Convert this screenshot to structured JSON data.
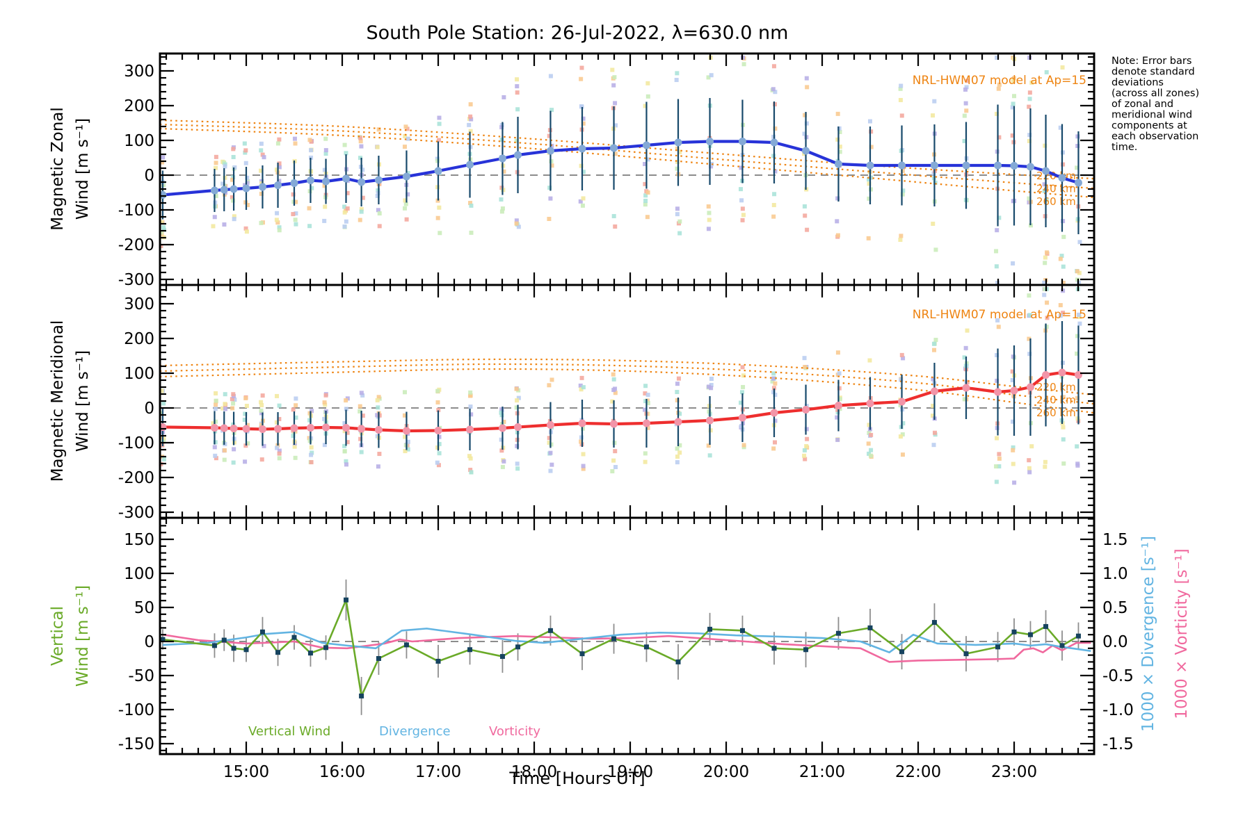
{
  "title": "South Pole Station: 26-Jul-2022, λ=630.0 nm",
  "note_lines": [
    "Note: Error bars",
    "denote standard",
    "deviations",
    "(across all zones)",
    "of zonal and",
    "meridional wind",
    "components at",
    "each observation",
    "time."
  ],
  "x_axis": {
    "label": "Time [Hours UT]",
    "tick_labels": [
      "15:00",
      "16:00",
      "17:00",
      "18:00",
      "19:00",
      "20:00",
      "21:00",
      "22:00",
      "23:00"
    ],
    "tick_hours": [
      15,
      16,
      17,
      18,
      19,
      20,
      21,
      22,
      23
    ],
    "range_hours": [
      14.1,
      23.83
    ]
  },
  "colors": {
    "zonal_line": "#2733d8",
    "zonal_marker": "#84a9d6",
    "meridional_line": "#ee2e2e",
    "meridional_marker": "#f295a8",
    "error_bar": "#17496b",
    "model_orange": "#ee8412",
    "vertical_line": "#6aaa28",
    "vertical_marker": "#16435f",
    "divergence_line": "#62b4e2",
    "vorticity_line": "#f0699e",
    "zero_dash": "#8c8c8c",
    "gray_error": "#8e8e8e",
    "frame": "#000000",
    "strip_palette": [
      "#f4a79d",
      "#f9c98f",
      "#f2e89e",
      "#c9ecba",
      "#a8e3d8",
      "#b9cdf0",
      "#b7aee6"
    ]
  },
  "chart_data": [
    {
      "type": "line",
      "panel": "magnetic-zonal-wind",
      "ylabel_line1": "Magnetic Zonal",
      "ylabel_line2": "Wind [m s⁻¹]",
      "yticks": [
        300,
        200,
        100,
        0,
        -100,
        -200,
        -300
      ],
      "ylim": [
        -316,
        354
      ],
      "grid": false,
      "model_label": "NRL-HWM07 model at Ap=15",
      "x": [
        14.13,
        14.67,
        14.77,
        14.87,
        15.0,
        15.17,
        15.33,
        15.5,
        15.67,
        15.83,
        16.04,
        16.2,
        16.38,
        16.67,
        17.0,
        17.33,
        17.67,
        17.83,
        18.17,
        18.5,
        18.83,
        19.17,
        19.5,
        19.83,
        20.17,
        20.5,
        20.83,
        21.17,
        21.5,
        21.83,
        22.17,
        22.5,
        22.83,
        23.0,
        23.17,
        23.33,
        23.5,
        23.67
      ],
      "series": [
        {
          "name": "zonal wind",
          "values": [
            -57,
            -44,
            -42,
            -40,
            -38,
            -34,
            -29,
            -23,
            -15,
            -18,
            -10,
            -20,
            -14,
            -4,
            12,
            30,
            48,
            58,
            70,
            76,
            78,
            86,
            94,
            97,
            97,
            94,
            70,
            32,
            28,
            28,
            28,
            28,
            28,
            27,
            24,
            12,
            -8,
            -22
          ],
          "stderr": [
            70,
            62,
            62,
            62,
            62,
            62,
            65,
            65,
            65,
            65,
            70,
            70,
            70,
            75,
            85,
            95,
            105,
            110,
            115,
            120,
            120,
            125,
            125,
            125,
            120,
            118,
            112,
            108,
            112,
            115,
            118,
            125,
            175,
            172,
            168,
            162,
            155,
            148
          ]
        }
      ],
      "model_curves": [
        {
          "label": "220 km",
          "points": [
            [
              14.1,
              158
            ],
            [
              16,
              140
            ],
            [
              18,
              104
            ],
            [
              20,
              60
            ],
            [
              21.5,
              28
            ],
            [
              23,
              2
            ],
            [
              23.83,
              -10
            ]
          ]
        },
        {
          "label": "240 km",
          "points": [
            [
              14.1,
              146
            ],
            [
              16,
              127
            ],
            [
              18,
              90
            ],
            [
              20,
              44
            ],
            [
              21.5,
              10
            ],
            [
              23,
              -22
            ],
            [
              23.83,
              -38
            ]
          ]
        },
        {
          "label": "260 km",
          "points": [
            [
              14.1,
              134
            ],
            [
              16,
              114
            ],
            [
              18,
              76
            ],
            [
              20,
              28
            ],
            [
              21.5,
              -8
            ],
            [
              23,
              -45
            ],
            [
              23.83,
              -64
            ]
          ]
        }
      ]
    },
    {
      "type": "line",
      "panel": "magnetic-meridional-wind",
      "ylabel_line1": "Magnetic Meridional",
      "ylabel_line2": "Wind [m s⁻¹]",
      "yticks": [
        300,
        200,
        100,
        0,
        -100,
        -200,
        -300
      ],
      "ylim": [
        -316,
        354
      ],
      "grid": false,
      "model_label": "NRL-HWM07 model at Ap=15",
      "x": [
        14.13,
        14.67,
        14.77,
        14.87,
        15.0,
        15.17,
        15.33,
        15.5,
        15.67,
        15.83,
        16.04,
        16.2,
        16.38,
        16.67,
        17.0,
        17.33,
        17.67,
        17.83,
        18.17,
        18.5,
        18.83,
        19.17,
        19.5,
        19.83,
        20.17,
        20.5,
        20.83,
        21.17,
        21.5,
        21.83,
        22.17,
        22.5,
        22.83,
        23.0,
        23.17,
        23.33,
        23.5,
        23.67
      ],
      "series": [
        {
          "name": "meridional wind",
          "values": [
            -55,
            -57,
            -58,
            -59,
            -60,
            -61,
            -60,
            -58,
            -57,
            -56,
            -57,
            -60,
            -63,
            -66,
            -65,
            -62,
            -58,
            -55,
            -49,
            -44,
            -46,
            -44,
            -40,
            -36,
            -28,
            -14,
            -5,
            7,
            13,
            18,
            48,
            58,
            46,
            50,
            60,
            95,
            102,
            95
          ],
          "stderr": [
            55,
            48,
            48,
            48,
            48,
            48,
            48,
            48,
            48,
            48,
            52,
            52,
            52,
            55,
            58,
            60,
            62,
            64,
            66,
            68,
            68,
            70,
            70,
            70,
            70,
            70,
            72,
            74,
            76,
            78,
            82,
            90,
            125,
            130,
            140,
            148,
            148,
            142
          ]
        }
      ],
      "model_curves": [
        {
          "label": "220 km",
          "points": [
            [
              14.1,
              122
            ],
            [
              16,
              133
            ],
            [
              17.5,
              140
            ],
            [
              19,
              136
            ],
            [
              20.5,
              120
            ],
            [
              22,
              92
            ],
            [
              23,
              62
            ],
            [
              23.83,
              38
            ]
          ]
        },
        {
          "label": "240 km",
          "points": [
            [
              14.1,
              106
            ],
            [
              16,
              118
            ],
            [
              17.5,
              126
            ],
            [
              19,
              121
            ],
            [
              20.5,
              103
            ],
            [
              22,
              72
            ],
            [
              23,
              38
            ],
            [
              23.83,
              12
            ]
          ]
        },
        {
          "label": "260 km",
          "points": [
            [
              14.1,
              90
            ],
            [
              16,
              103
            ],
            [
              17.5,
              112
            ],
            [
              19,
              106
            ],
            [
              20.5,
              86
            ],
            [
              22,
              52
            ],
            [
              23,
              16
            ],
            [
              23.83,
              -14
            ]
          ]
        }
      ]
    },
    {
      "type": "line",
      "panel": "vertical-wind-divergence-vorticity",
      "ylabel_line1": "Vertical",
      "ylabel_line2": "Wind [m s⁻¹]",
      "yticks_left": [
        150,
        100,
        50,
        0,
        -50,
        -100,
        -150
      ],
      "ylim_left": [
        -165,
        181
      ],
      "right_axis": {
        "label_divergence": "1000 × Divergence [s⁻¹]",
        "label_vorticity": "1000 × Vorticity [s⁻¹]",
        "ticks": [
          1.5,
          1.0,
          0.5,
          0.0,
          -0.5,
          -1.0,
          -1.5
        ]
      },
      "legend": [
        {
          "label": "Vertical Wind",
          "color_key": "vertical_line"
        },
        {
          "label": "Divergence",
          "color_key": "divergence_line"
        },
        {
          "label": "Vorticity",
          "color_key": "vorticity_line"
        }
      ],
      "x": [
        14.13,
        14.67,
        14.77,
        14.87,
        15.0,
        15.17,
        15.33,
        15.5,
        15.67,
        15.83,
        16.04,
        16.2,
        16.38,
        16.67,
        17.0,
        17.33,
        17.67,
        17.83,
        18.17,
        18.5,
        18.83,
        19.17,
        19.5,
        19.83,
        20.17,
        20.5,
        20.83,
        21.17,
        21.5,
        21.83,
        22.17,
        22.5,
        22.83,
        23.0,
        23.17,
        23.33,
        23.5,
        23.67
      ],
      "series": [
        {
          "name": "vertical wind",
          "values": [
            3,
            -6,
            2,
            -10,
            -12,
            14,
            -16,
            6,
            -17,
            -9,
            61,
            -80,
            -25,
            -5,
            -29,
            -12,
            -22,
            -8,
            16,
            -18,
            4,
            -8,
            -30,
            18,
            16,
            -10,
            -12,
            12,
            20,
            -15,
            28,
            -18,
            -8,
            14,
            10,
            22,
            -6,
            8
          ],
          "stderr": [
            15,
            18,
            16,
            20,
            18,
            22,
            20,
            18,
            20,
            18,
            30,
            28,
            24,
            20,
            24,
            22,
            24,
            20,
            22,
            24,
            22,
            22,
            26,
            24,
            22,
            24,
            26,
            24,
            28,
            26,
            28,
            26,
            22,
            20,
            20,
            24,
            22,
            20
          ]
        }
      ],
      "divergence_x1000": [
        [
          14.13,
          -0.05
        ],
        [
          14.6,
          -0.02
        ],
        [
          15.0,
          0.06
        ],
        [
          15.2,
          0.11
        ],
        [
          15.5,
          0.14
        ],
        [
          15.79,
          -0.02
        ],
        [
          16.05,
          -0.06
        ],
        [
          16.35,
          -0.1
        ],
        [
          16.62,
          0.16
        ],
        [
          16.88,
          0.19
        ],
        [
          17.36,
          0.1
        ],
        [
          17.8,
          0.01
        ],
        [
          18.1,
          -0.02
        ],
        [
          18.5,
          0.04
        ],
        [
          18.9,
          0.1
        ],
        [
          19.3,
          0.13
        ],
        [
          19.7,
          0.12
        ],
        [
          20.1,
          0.09
        ],
        [
          20.6,
          0.07
        ],
        [
          21.0,
          0.05
        ],
        [
          21.4,
          0.0
        ],
        [
          21.7,
          -0.16
        ],
        [
          21.95,
          0.1
        ],
        [
          22.2,
          -0.03
        ],
        [
          22.6,
          -0.05
        ],
        [
          23.0,
          -0.03
        ],
        [
          23.17,
          -0.06
        ],
        [
          23.33,
          -0.04
        ],
        [
          23.5,
          -0.08
        ],
        [
          23.8,
          -0.14
        ]
      ],
      "vorticity_x1000": [
        [
          14.13,
          0.1
        ],
        [
          14.5,
          0.02
        ],
        [
          15.0,
          -0.03
        ],
        [
          15.19,
          -0.02
        ],
        [
          15.5,
          0.0
        ],
        [
          15.79,
          -0.09
        ],
        [
          16.05,
          -0.1
        ],
        [
          16.44,
          -0.03
        ],
        [
          16.6,
          0.03
        ],
        [
          16.73,
          0.0
        ],
        [
          17.22,
          0.05
        ],
        [
          17.8,
          0.08
        ],
        [
          18.2,
          0.06
        ],
        [
          18.6,
          0.04
        ],
        [
          19.0,
          0.05
        ],
        [
          19.4,
          0.08
        ],
        [
          19.8,
          0.04
        ],
        [
          20.2,
          0.0
        ],
        [
          20.6,
          -0.04
        ],
        [
          21.0,
          -0.07
        ],
        [
          21.4,
          -0.1
        ],
        [
          21.7,
          -0.3
        ],
        [
          22.0,
          -0.28
        ],
        [
          22.4,
          -0.27
        ],
        [
          22.8,
          -0.26
        ],
        [
          23.0,
          -0.25
        ],
        [
          23.1,
          -0.12
        ],
        [
          23.2,
          -0.1
        ],
        [
          23.3,
          -0.16
        ],
        [
          23.4,
          -0.06
        ],
        [
          23.5,
          -0.13
        ],
        [
          23.65,
          -0.02
        ],
        [
          23.8,
          -0.02
        ]
      ]
    }
  ]
}
